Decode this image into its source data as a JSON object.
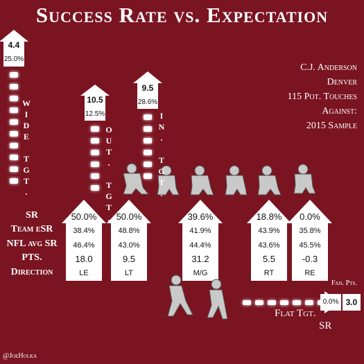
{
  "title": "Success Rate vs. Expectation",
  "info": [
    "C.J. Anderson",
    "Denver",
    "115 Pot. Touches",
    "Against:",
    "2015 Sample"
  ],
  "row_labels": [
    "SR",
    "Team eSR",
    "NFL avg SR",
    "PTS.",
    "Direction"
  ],
  "columns": [
    {
      "sr": "50.0%",
      "team_esr": "38.4%",
      "nfl_avg_sr": "46.4%",
      "pts": "18.0",
      "direction": "LE"
    },
    {
      "sr": "50.0%",
      "team_esr": "48.8%",
      "nfl_avg_sr": "43.0%",
      "pts": "9.5",
      "direction": "LT"
    },
    {
      "sr": "39.6%",
      "team_esr": "41.9%",
      "nfl_avg_sr": "44.4%",
      "pts": "31.2",
      "direction": "M/G"
    },
    {
      "sr": "18.8%",
      "team_esr": "43.9%",
      "nfl_avg_sr": "43.6%",
      "pts": "5.5",
      "direction": "RT"
    },
    {
      "sr": "0.0%",
      "team_esr": "35.8%",
      "nfl_avg_sr": "45.5%",
      "pts": "-0.3",
      "direction": "RE"
    }
  ],
  "pass_targets": [
    {
      "label": "WIDE TGT.",
      "pts": "4.4",
      "sr": "25.0%"
    },
    {
      "label": "OUT. TGT.",
      "pts": "10.5",
      "sr": "12.5%"
    },
    {
      "label": "IN. TGT.",
      "pts": "9.5",
      "sr": "28.6%"
    }
  ],
  "flat": {
    "label": "Flat Tgt.",
    "sr": "0.0%",
    "pts": "3.0",
    "sr_label": "SR",
    "pts_label": "Fan. Pts."
  },
  "credit": "@JoeHolka"
}
